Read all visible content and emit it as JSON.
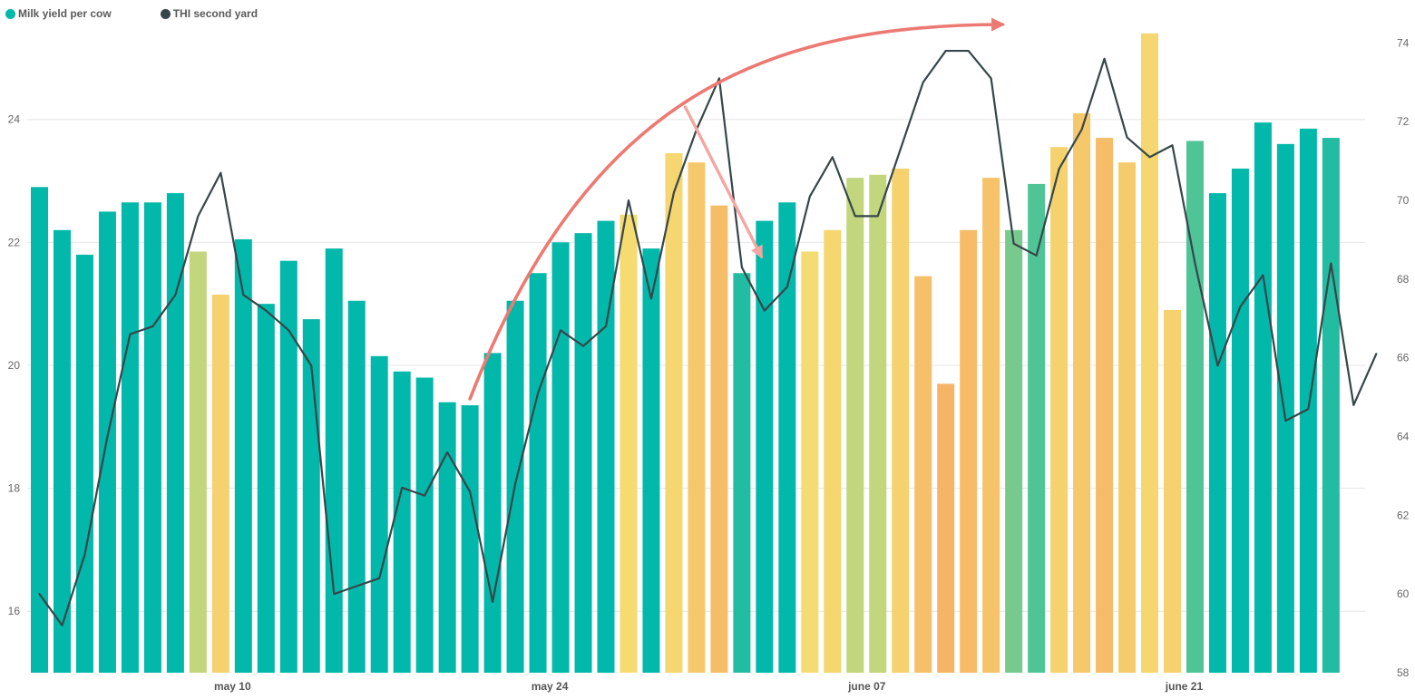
{
  "chart_data": {
    "type": "bar",
    "legend_position": "top-left",
    "grid": true,
    "x_labels": [
      "may 10",
      "may 24",
      "june 07",
      "june 21"
    ],
    "x_label_day_index": [
      9,
      23,
      37,
      51
    ],
    "y_left": {
      "ticks": [
        16,
        18,
        20,
        22,
        24
      ],
      "range": [
        15,
        25.5
      ]
    },
    "y_right": {
      "ticks": [
        58,
        60,
        62,
        64,
        66,
        68,
        70,
        72,
        74
      ],
      "range": [
        58,
        74.4
      ]
    },
    "series": [
      {
        "name": "Milk yield per cow",
        "type": "bar",
        "axis": "left",
        "color": "#01b8aa",
        "values": [
          22.9,
          22.2,
          21.8,
          22.5,
          22.65,
          22.65,
          22.8,
          21.85,
          21.15,
          22.05,
          21.0,
          21.7,
          20.75,
          21.9,
          21.05,
          20.15,
          19.9,
          19.8,
          19.4,
          19.35,
          20.2,
          21.05,
          21.5,
          22.0,
          22.15,
          22.35,
          22.45,
          21.9,
          23.45,
          23.3,
          22.6,
          21.5,
          22.35,
          22.65,
          21.85,
          22.2,
          23.05,
          23.1,
          23.2,
          21.45,
          19.7,
          22.2,
          23.05,
          22.2,
          22.95,
          23.55,
          24.1,
          23.7,
          23.3,
          25.4,
          20.9,
          23.65,
          22.8,
          23.2,
          23.95,
          23.6,
          23.85,
          23.7
        ]
      },
      {
        "name": "THI second yard",
        "type": "line",
        "axis": "right",
        "color": "#374649",
        "values": [
          60.0,
          59.2,
          61.0,
          64.0,
          66.6,
          66.8,
          67.6,
          69.6,
          70.7,
          67.6,
          67.2,
          66.7,
          65.8,
          60.0,
          60.2,
          60.4,
          62.7,
          62.5,
          63.6,
          62.6,
          59.8,
          62.8,
          65.1,
          66.7,
          66.3,
          66.8,
          70.0,
          67.5,
          70.2,
          71.8,
          73.1,
          68.3,
          67.2,
          67.8,
          70.1,
          71.1,
          69.6,
          69.6,
          71.3,
          73.0,
          73.8,
          73.8,
          73.1,
          68.9,
          68.6,
          70.8,
          71.8,
          73.6,
          71.6,
          71.1,
          71.4,
          68.4,
          65.8,
          67.3,
          68.1,
          64.4,
          64.7,
          68.4,
          64.8,
          66.1
        ]
      }
    ],
    "bar_colors": [
      "#01b8aa",
      "#01b8aa",
      "#01b8aa",
      "#01b8aa",
      "#01b8aa",
      "#01b8aa",
      "#01b8aa",
      "#c1d67d",
      "#f5d26e",
      "#01b8aa",
      "#01b8aa",
      "#01b8aa",
      "#01b8aa",
      "#01b8aa",
      "#01b8aa",
      "#01b8aa",
      "#01b8aa",
      "#01b8aa",
      "#01b8aa",
      "#01b8aa",
      "#01b8aa",
      "#01b8aa",
      "#01b8aa",
      "#01b8aa",
      "#01b8aa",
      "#01b8aa",
      "#f5db70",
      "#01b8aa",
      "#f5d670",
      "#f5c86c",
      "#f5bd68",
      "#22bca2",
      "#01b8aa",
      "#01b8aa",
      "#f5dc72",
      "#f5d66f",
      "#c1d67d",
      "#c1d67d",
      "#f5d26e",
      "#f6c06a",
      "#f6b468",
      "#f6bc68",
      "#f6c26a",
      "#78c98e",
      "#4fc497",
      "#f5d26e",
      "#f5c86c",
      "#f6bc68",
      "#f5cc6c",
      "#f5d670",
      "#f5d26e",
      "#4fc497",
      "#01b8aa",
      "#01b8aa",
      "#01b8aa",
      "#01b8aa",
      "#01b8aa",
      "#22bca2"
    ],
    "annotations": [
      {
        "type": "arrow",
        "shape": "arc",
        "color": "#ec7a73",
        "from_day": 19,
        "to_day": 42.5
      },
      {
        "type": "arrow",
        "shape": "straight",
        "color": "#f4a6a2",
        "from_day": 28.5,
        "to_day": 31.5
      }
    ]
  }
}
